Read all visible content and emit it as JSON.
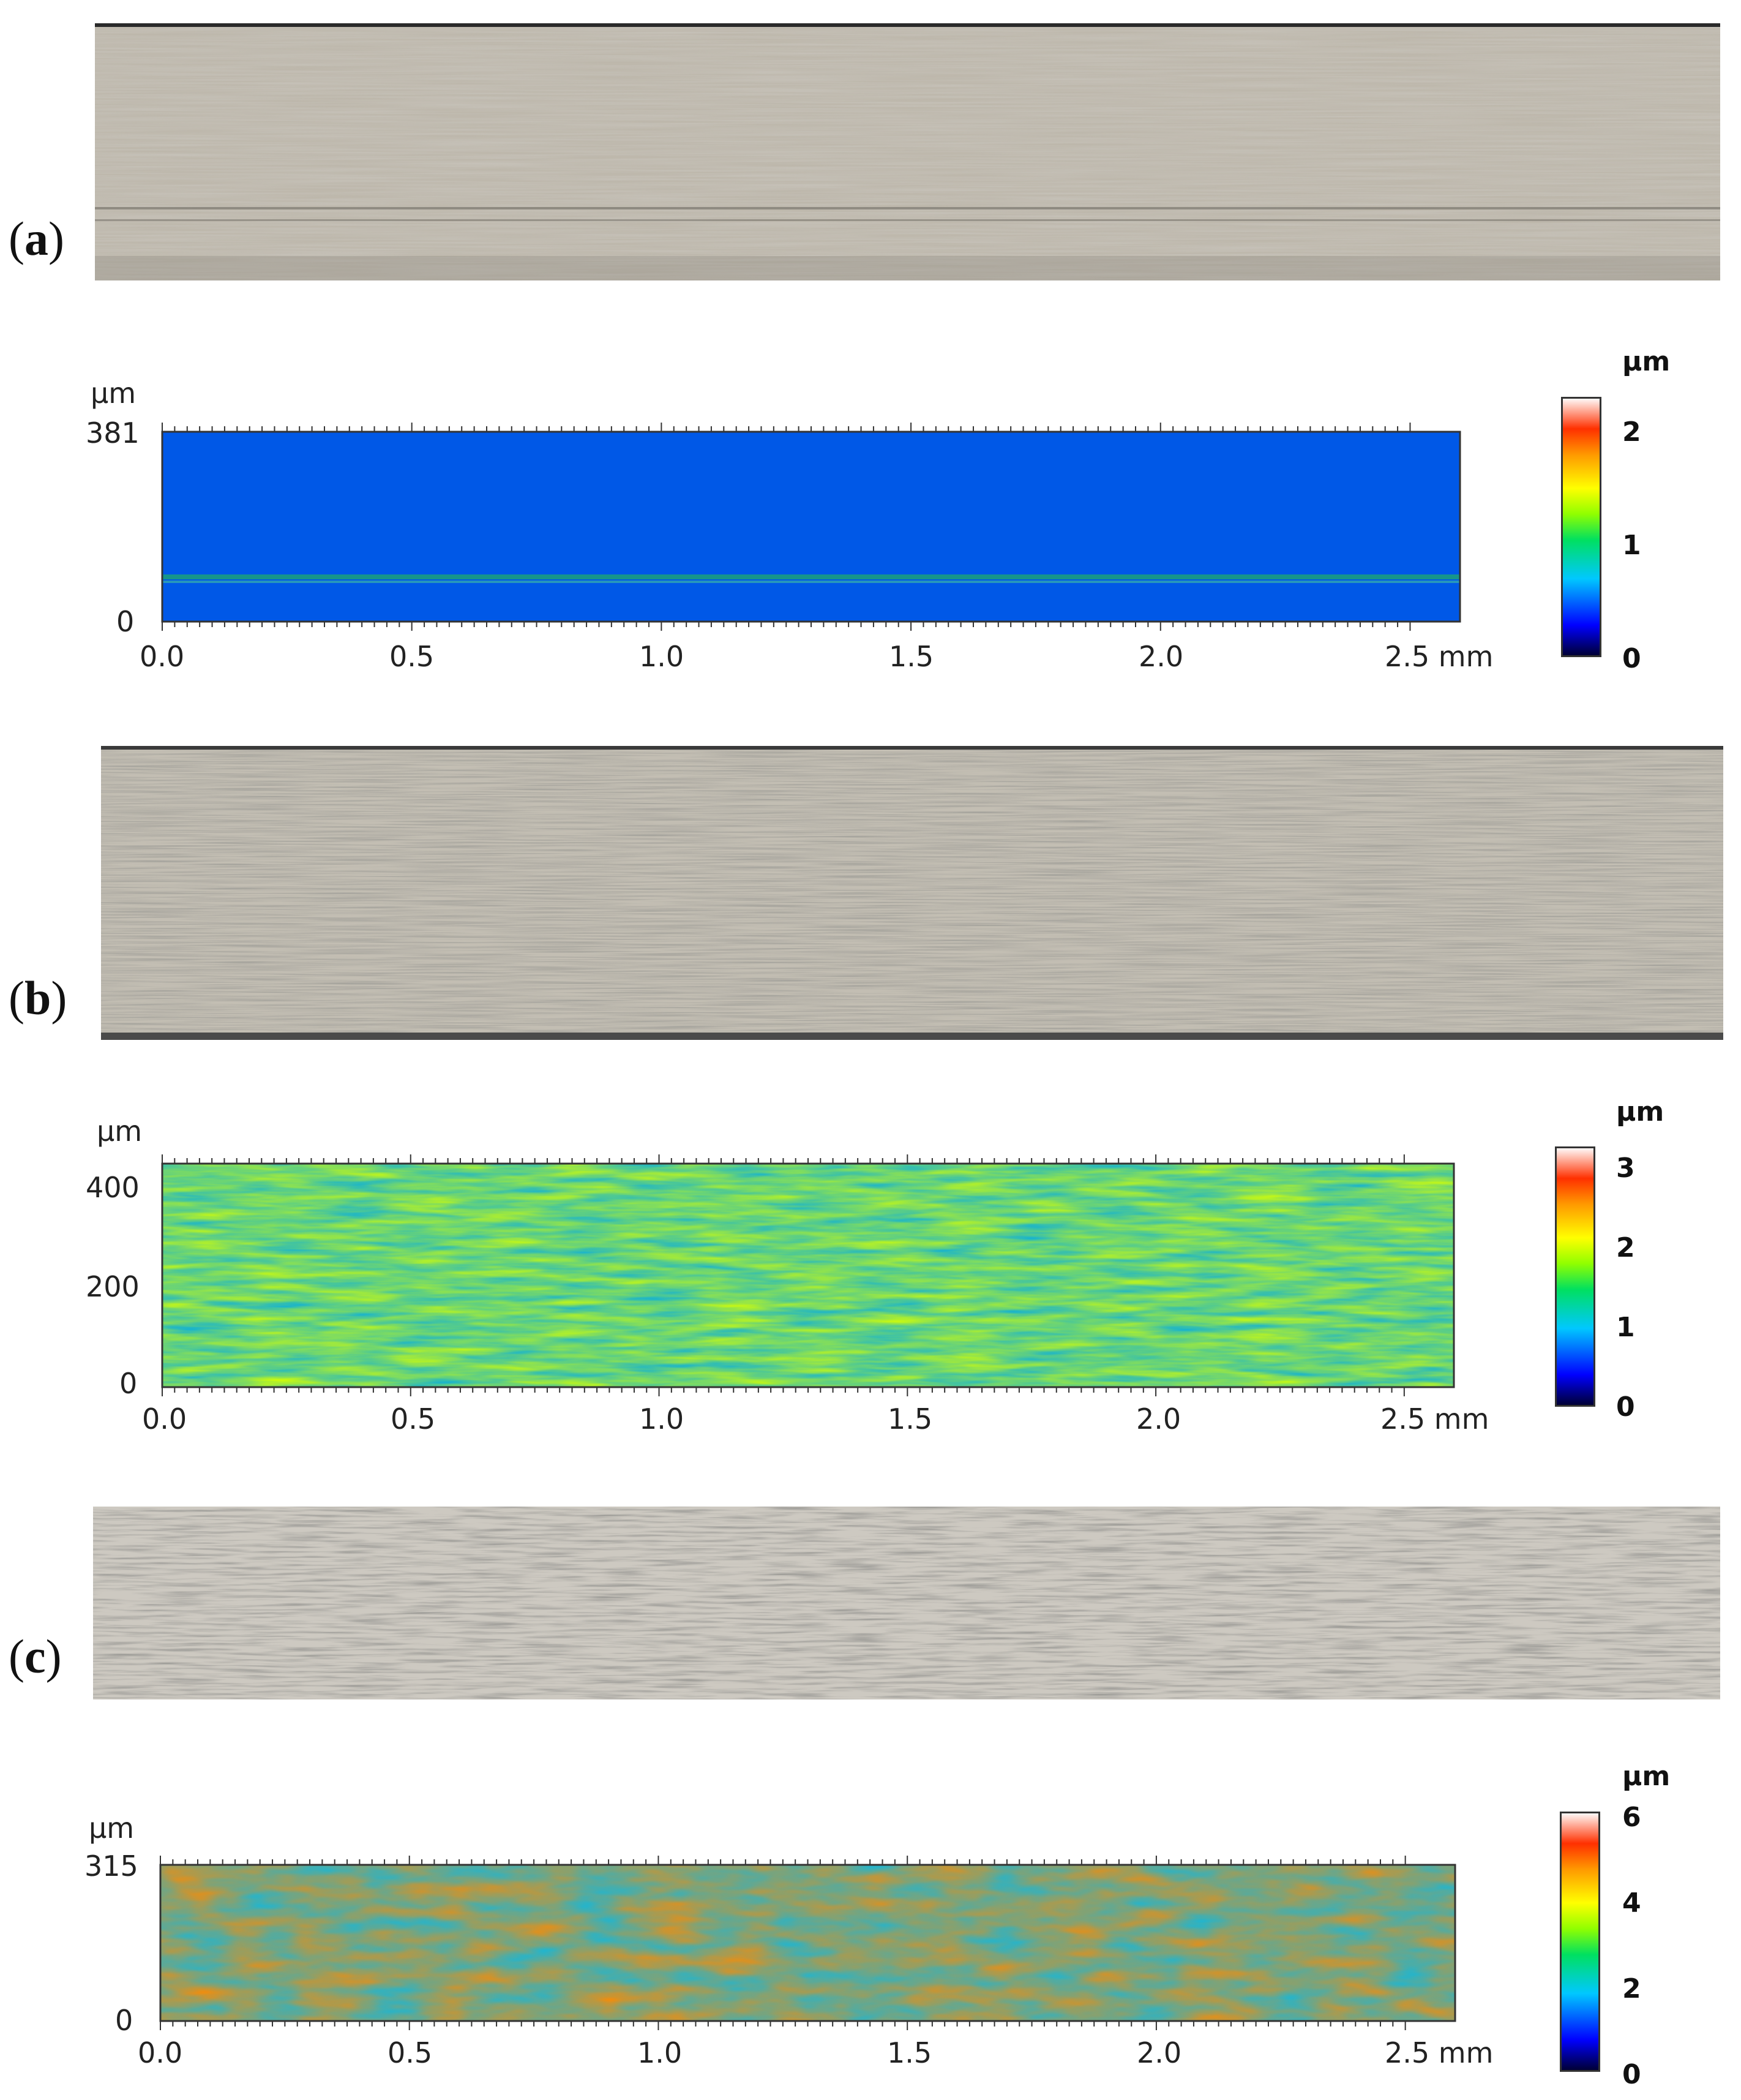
{
  "figure": {
    "panels": [
      {
        "label": "(a)",
        "label_letter": "a",
        "map_unit": "µm",
        "x_tick_labels": [
          "0.0",
          "0.5",
          "1.0",
          "1.5",
          "2.0"
        ],
        "x_end_label": "2.5 mm",
        "y_tick_labels": [
          "381",
          "0"
        ],
        "colorbar_unit": "µm",
        "colorbar_ticks": [
          "2",
          "1",
          "0"
        ]
      },
      {
        "label": "(b)",
        "label_letter": "b",
        "map_unit": "µm",
        "x_tick_labels": [
          "0.0",
          "0.5",
          "1.0",
          "1.5",
          "2.0"
        ],
        "x_end_label": "2.5 mm",
        "y_tick_labels": [
          "400",
          "200",
          "0"
        ],
        "colorbar_unit": "µm",
        "colorbar_ticks": [
          "3",
          "2",
          "1",
          "0"
        ]
      },
      {
        "label": "(c)",
        "label_letter": "c",
        "map_unit": "µm",
        "x_tick_labels": [
          "0.0",
          "0.5",
          "1.0",
          "1.5",
          "2.0"
        ],
        "x_end_label": "2.5 mm",
        "y_tick_labels": [
          "315",
          "0"
        ],
        "colorbar_unit": "µm",
        "colorbar_ticks": [
          "6",
          "4",
          "2",
          "0"
        ]
      }
    ],
    "colormap": [
      "#000030",
      "#0000ff",
      "#00c8ff",
      "#00e060",
      "#90ff00",
      "#ffff00",
      "#ff9900",
      "#ff3000",
      "#ffffff"
    ]
  }
}
